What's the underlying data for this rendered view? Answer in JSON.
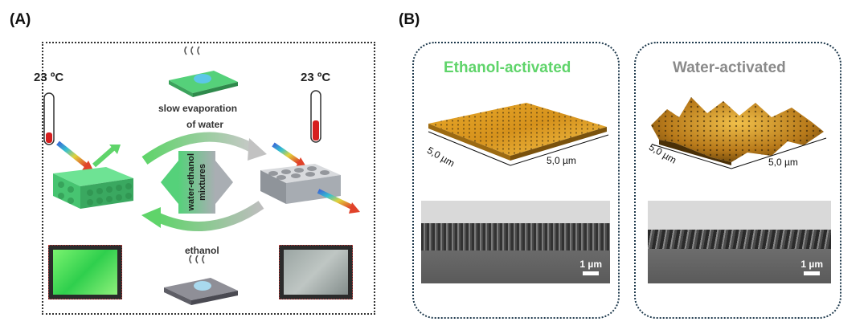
{
  "panel_a": {
    "label": "(A)",
    "temp_left": "23 ºC",
    "temp_right": "23 ºC",
    "top_caption_line1": "slow evaporation",
    "top_caption_line2": "of water",
    "center_label_line1": "water-ethanol",
    "center_label_line2": "mixtures",
    "bottom_caption": "ethanol"
  },
  "panel_b": {
    "label": "(B)",
    "card_left": {
      "title": "Ethanol-activated",
      "title_color": "#5fd46a",
      "axis_x": "5,0 µm",
      "axis_y": "5,0 µm",
      "scale_bar": "1 µm"
    },
    "card_right": {
      "title": "Water-activated",
      "title_color": "#8a8a8a",
      "axis_x": "5,0 µm",
      "axis_y": "5,0 µm",
      "scale_bar": "1 µm"
    }
  },
  "colors": {
    "green_film": "#63e08a",
    "gray_film": "#9aa0a8",
    "thermo_red": "#d61f1f",
    "dotted_border": "#1f3a4d",
    "afm_gold": "#c98d1a"
  }
}
